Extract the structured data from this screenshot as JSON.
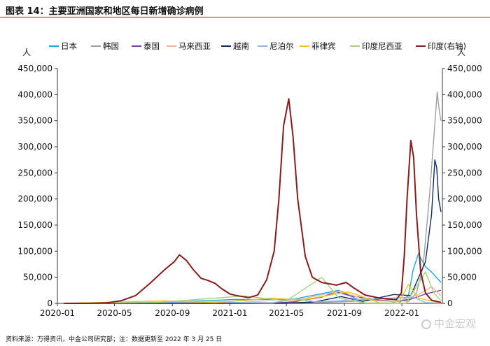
{
  "title": "图表 14：主要亚洲国家和地区每日新增确诊病例",
  "source": "资料来源：万得资讯，中金公司研究部；注：数据更新至 2022 年 3 月 25 日",
  "watermark": "中金宏观",
  "unit_left": "人",
  "unit_right": "人",
  "chart_data": {
    "type": "line",
    "title": "图表 14：主要亚洲国家和地区每日新增确诊病例",
    "x_ticks": [
      "2020-01",
      "2020-05",
      "2020-09",
      "2021-01",
      "2021-05",
      "2021-09",
      "2022-01"
    ],
    "y_left": {
      "label": "人",
      "lim": [
        0,
        450000
      ],
      "ticks": [
        "0",
        "50,000",
        "100,000",
        "150,000",
        "200,000",
        "250,000",
        "300,000",
        "350,000",
        "400,000",
        "450,000"
      ]
    },
    "y_right": {
      "label": "人",
      "lim": [
        0,
        450000
      ],
      "ticks": [
        "0",
        "50,000",
        "100,000",
        "150,000",
        "200,000",
        "250,000",
        "300,000",
        "350,000",
        "400,000",
        "450,000"
      ]
    },
    "grid": false,
    "legend_position": "top",
    "series": [
      {
        "name": "日本",
        "color": "#1aa7e0",
        "axis": "left",
        "points": [
          [
            "2020-01-15",
            0
          ],
          [
            "2020-04-15",
            500
          ],
          [
            "2020-08-05",
            1500
          ],
          [
            "2021-01-10",
            7500
          ],
          [
            "2021-05-10",
            7000
          ],
          [
            "2021-08-20",
            25000
          ],
          [
            "2021-10-15",
            500
          ],
          [
            "2021-12-25",
            500
          ],
          [
            "2022-01-15",
            15000
          ],
          [
            "2022-01-25",
            65000
          ],
          [
            "2022-02-05",
            95000
          ],
          [
            "2022-02-20",
            70000
          ],
          [
            "2022-03-05",
            60000
          ],
          [
            "2022-03-20",
            45000
          ],
          [
            "2022-03-25",
            40000
          ]
        ]
      },
      {
        "name": "韩国",
        "color": "#9e9e9e",
        "axis": "left",
        "points": [
          [
            "2020-01-15",
            0
          ],
          [
            "2020-03-01",
            800
          ],
          [
            "2020-12-25",
            1200
          ],
          [
            "2021-07-25",
            2000
          ],
          [
            "2021-12-15",
            7000
          ],
          [
            "2022-01-15",
            4000
          ],
          [
            "2022-02-01",
            20000
          ],
          [
            "2022-02-15",
            70000
          ],
          [
            "2022-03-01",
            210000
          ],
          [
            "2022-03-10",
            320000
          ],
          [
            "2022-03-17",
            405000
          ],
          [
            "2022-03-20",
            380000
          ],
          [
            "2022-03-23",
            360000
          ],
          [
            "2022-03-25",
            350000
          ]
        ]
      },
      {
        "name": "泰国",
        "color": "#7a3fa0",
        "axis": "left",
        "points": [
          [
            "2020-01-15",
            0
          ],
          [
            "2021-04-01",
            300
          ],
          [
            "2021-05-15",
            3000
          ],
          [
            "2021-07-15",
            12000
          ],
          [
            "2021-08-15",
            22000
          ],
          [
            "2021-09-15",
            14000
          ],
          [
            "2021-11-01",
            8000
          ],
          [
            "2021-12-15",
            3000
          ],
          [
            "2022-01-20",
            8000
          ],
          [
            "2022-02-20",
            18000
          ],
          [
            "2022-03-25",
            25000
          ]
        ]
      },
      {
        "name": "马来西亚",
        "color": "#f3b892",
        "axis": "left",
        "points": [
          [
            "2020-01-15",
            0
          ],
          [
            "2020-10-01",
            500
          ],
          [
            "2021-01-25",
            5000
          ],
          [
            "2021-04-01",
            1500
          ],
          [
            "2021-06-01",
            8000
          ],
          [
            "2021-08-25",
            24000
          ],
          [
            "2021-10-15",
            6000
          ],
          [
            "2021-12-20",
            3500
          ],
          [
            "2022-02-01",
            15000
          ],
          [
            "2022-03-05",
            32000
          ],
          [
            "2022-03-25",
            14000
          ]
        ]
      },
      {
        "name": "越南",
        "color": "#0e2a66",
        "axis": "left",
        "points": [
          [
            "2020-01-15",
            0
          ],
          [
            "2021-05-01",
            0
          ],
          [
            "2021-07-01",
            3000
          ],
          [
            "2021-08-25",
            13000
          ],
          [
            "2021-10-10",
            4000
          ],
          [
            "2021-12-15",
            17000
          ],
          [
            "2022-01-20",
            15000
          ],
          [
            "2022-02-20",
            80000
          ],
          [
            "2022-03-05",
            170000
          ],
          [
            "2022-03-12",
            275000
          ],
          [
            "2022-03-16",
            260000
          ],
          [
            "2022-03-20",
            200000
          ],
          [
            "2022-03-25",
            175000
          ]
        ]
      },
      {
        "name": "尼泊尔",
        "color": "#8fb6e8",
        "axis": "left",
        "points": [
          [
            "2020-01-15",
            0
          ],
          [
            "2020-10-15",
            3000
          ],
          [
            "2021-04-01",
            500
          ],
          [
            "2021-05-15",
            9000
          ],
          [
            "2021-07-01",
            3000
          ],
          [
            "2022-01-25",
            12000
          ],
          [
            "2022-02-20",
            1500
          ],
          [
            "2022-03-25",
            500
          ]
        ]
      },
      {
        "name": "菲律宾",
        "color": "#f2c417",
        "axis": "left",
        "points": [
          [
            "2020-01-15",
            0
          ],
          [
            "2020-08-15",
            5000
          ],
          [
            "2020-12-01",
            1500
          ],
          [
            "2021-04-01",
            10000
          ],
          [
            "2021-06-01",
            6000
          ],
          [
            "2021-09-10",
            22000
          ],
          [
            "2021-11-15",
            1000
          ],
          [
            "2021-12-25",
            500
          ],
          [
            "2022-01-15",
            36000
          ],
          [
            "2022-02-05",
            10000
          ],
          [
            "2022-03-25",
            700
          ]
        ]
      },
      {
        "name": "印度尼西亚",
        "color": "#a6d27e",
        "axis": "left",
        "points": [
          [
            "2020-01-15",
            0
          ],
          [
            "2020-08-01",
            2000
          ],
          [
            "2021-01-30",
            14000
          ],
          [
            "2021-05-01",
            5000
          ],
          [
            "2021-07-15",
            50000
          ],
          [
            "2021-08-20",
            10000
          ],
          [
            "2021-10-15",
            1000
          ],
          [
            "2022-01-10",
            500
          ],
          [
            "2022-02-10",
            45000
          ],
          [
            "2022-02-20",
            60000
          ],
          [
            "2022-03-10",
            20000
          ],
          [
            "2022-03-25",
            5000
          ]
        ]
      },
      {
        "name": "印度(右轴)",
        "color": "#8b1a1a",
        "axis": "right",
        "points": [
          [
            "2020-01-15",
            0
          ],
          [
            "2020-03-15",
            100
          ],
          [
            "2020-04-15",
            1000
          ],
          [
            "2020-05-15",
            5000
          ],
          [
            "2020-06-15",
            15000
          ],
          [
            "2020-07-15",
            38000
          ],
          [
            "2020-08-15",
            64000
          ],
          [
            "2020-09-05",
            80000
          ],
          [
            "2020-09-16",
            93000
          ],
          [
            "2020-10-01",
            82000
          ],
          [
            "2020-10-15",
            65000
          ],
          [
            "2020-11-01",
            48000
          ],
          [
            "2020-11-15",
            44000
          ],
          [
            "2020-12-01",
            38000
          ],
          [
            "2020-12-15",
            28000
          ],
          [
            "2021-01-01",
            18000
          ],
          [
            "2021-01-15",
            15000
          ],
          [
            "2021-02-10",
            11000
          ],
          [
            "2021-03-01",
            16000
          ],
          [
            "2021-03-20",
            45000
          ],
          [
            "2021-04-05",
            100000
          ],
          [
            "2021-04-15",
            200000
          ],
          [
            "2021-04-25",
            340000
          ],
          [
            "2021-05-06",
            392000
          ],
          [
            "2021-05-15",
            320000
          ],
          [
            "2021-05-25",
            200000
          ],
          [
            "2021-06-10",
            90000
          ],
          [
            "2021-06-25",
            50000
          ],
          [
            "2021-07-15",
            40000
          ],
          [
            "2021-08-15",
            35000
          ],
          [
            "2021-09-05",
            40000
          ],
          [
            "2021-09-20",
            30000
          ],
          [
            "2021-10-15",
            16000
          ],
          [
            "2021-11-15",
            10000
          ],
          [
            "2021-12-20",
            7000
          ],
          [
            "2021-12-31",
            20000
          ],
          [
            "2022-01-06",
            90000
          ],
          [
            "2022-01-12",
            200000
          ],
          [
            "2022-01-20",
            312000
          ],
          [
            "2022-01-26",
            280000
          ],
          [
            "2022-02-01",
            170000
          ],
          [
            "2022-02-10",
            60000
          ],
          [
            "2022-02-20",
            20000
          ],
          [
            "2022-03-05",
            6000
          ],
          [
            "2022-03-25",
            1700
          ]
        ]
      }
    ]
  }
}
